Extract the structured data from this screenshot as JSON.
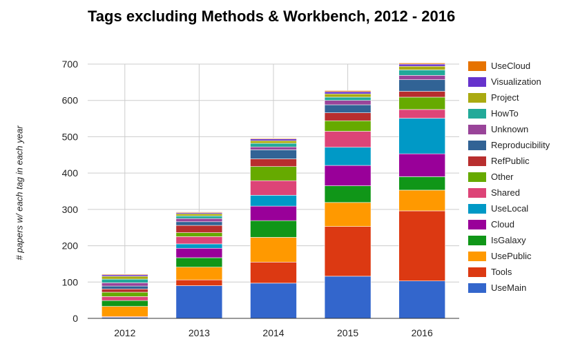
{
  "chart_data": {
    "type": "bar",
    "stacked": true,
    "title": "Tags excluding Methods & Workbench, 2012 - 2016",
    "xlabel": "",
    "ylabel": "# papers w/ each tag in each year",
    "ylim": [
      0,
      700
    ],
    "yticks": [
      0,
      100,
      200,
      300,
      400,
      500,
      600,
      700
    ],
    "grid": true,
    "legend_position": "right",
    "categories": [
      "2012",
      "2013",
      "2014",
      "2015",
      "2016"
    ],
    "series": [
      {
        "name": "UseMain",
        "color": "#3366cc",
        "values": [
          3,
          90,
          97,
          116,
          103
        ]
      },
      {
        "name": "Tools",
        "color": "#dc3912",
        "values": [
          2,
          16,
          58,
          137,
          193
        ]
      },
      {
        "name": "UsePublic",
        "color": "#ff9900",
        "values": [
          28,
          35,
          68,
          66,
          57
        ]
      },
      {
        "name": "IsGalaxy",
        "color": "#109618",
        "values": [
          16,
          26,
          46,
          46,
          37
        ]
      },
      {
        "name": "Cloud",
        "color": "#990099",
        "values": [
          0,
          26,
          40,
          56,
          63
        ]
      },
      {
        "name": "UseLocal",
        "color": "#0099c6",
        "values": [
          0,
          12,
          30,
          50,
          98
        ]
      },
      {
        "name": "Shared",
        "color": "#dd4477",
        "values": [
          11,
          20,
          40,
          44,
          24
        ]
      },
      {
        "name": "Other",
        "color": "#66aa00",
        "values": [
          12,
          11,
          39,
          29,
          34
        ]
      },
      {
        "name": "RefPublic",
        "color": "#b82e2e",
        "values": [
          9,
          20,
          21,
          22,
          16
        ]
      },
      {
        "name": "Reproducibility",
        "color": "#316395",
        "values": [
          8,
          10,
          25,
          22,
          32
        ]
      },
      {
        "name": "Unknown",
        "color": "#994499",
        "values": [
          9,
          9,
          8,
          12,
          12
        ]
      },
      {
        "name": "HowTo",
        "color": "#22aa99",
        "values": [
          10,
          7,
          10,
          9,
          15
        ]
      },
      {
        "name": "Project",
        "color": "#aaaa11",
        "values": [
          8,
          6,
          7,
          9,
          10
        ]
      },
      {
        "name": "Visualization",
        "color": "#6633cc",
        "values": [
          4,
          3,
          5,
          6,
          6
        ]
      },
      {
        "name": "UseCloud",
        "color": "#e67300",
        "values": [
          2,
          2,
          2,
          3,
          3
        ]
      }
    ],
    "legend_order": [
      "UseCloud",
      "Visualization",
      "Project",
      "HowTo",
      "Unknown",
      "Reproducibility",
      "RefPublic",
      "Other",
      "Shared",
      "UseLocal",
      "Cloud",
      "IsGalaxy",
      "UsePublic",
      "Tools",
      "UseMain"
    ]
  }
}
